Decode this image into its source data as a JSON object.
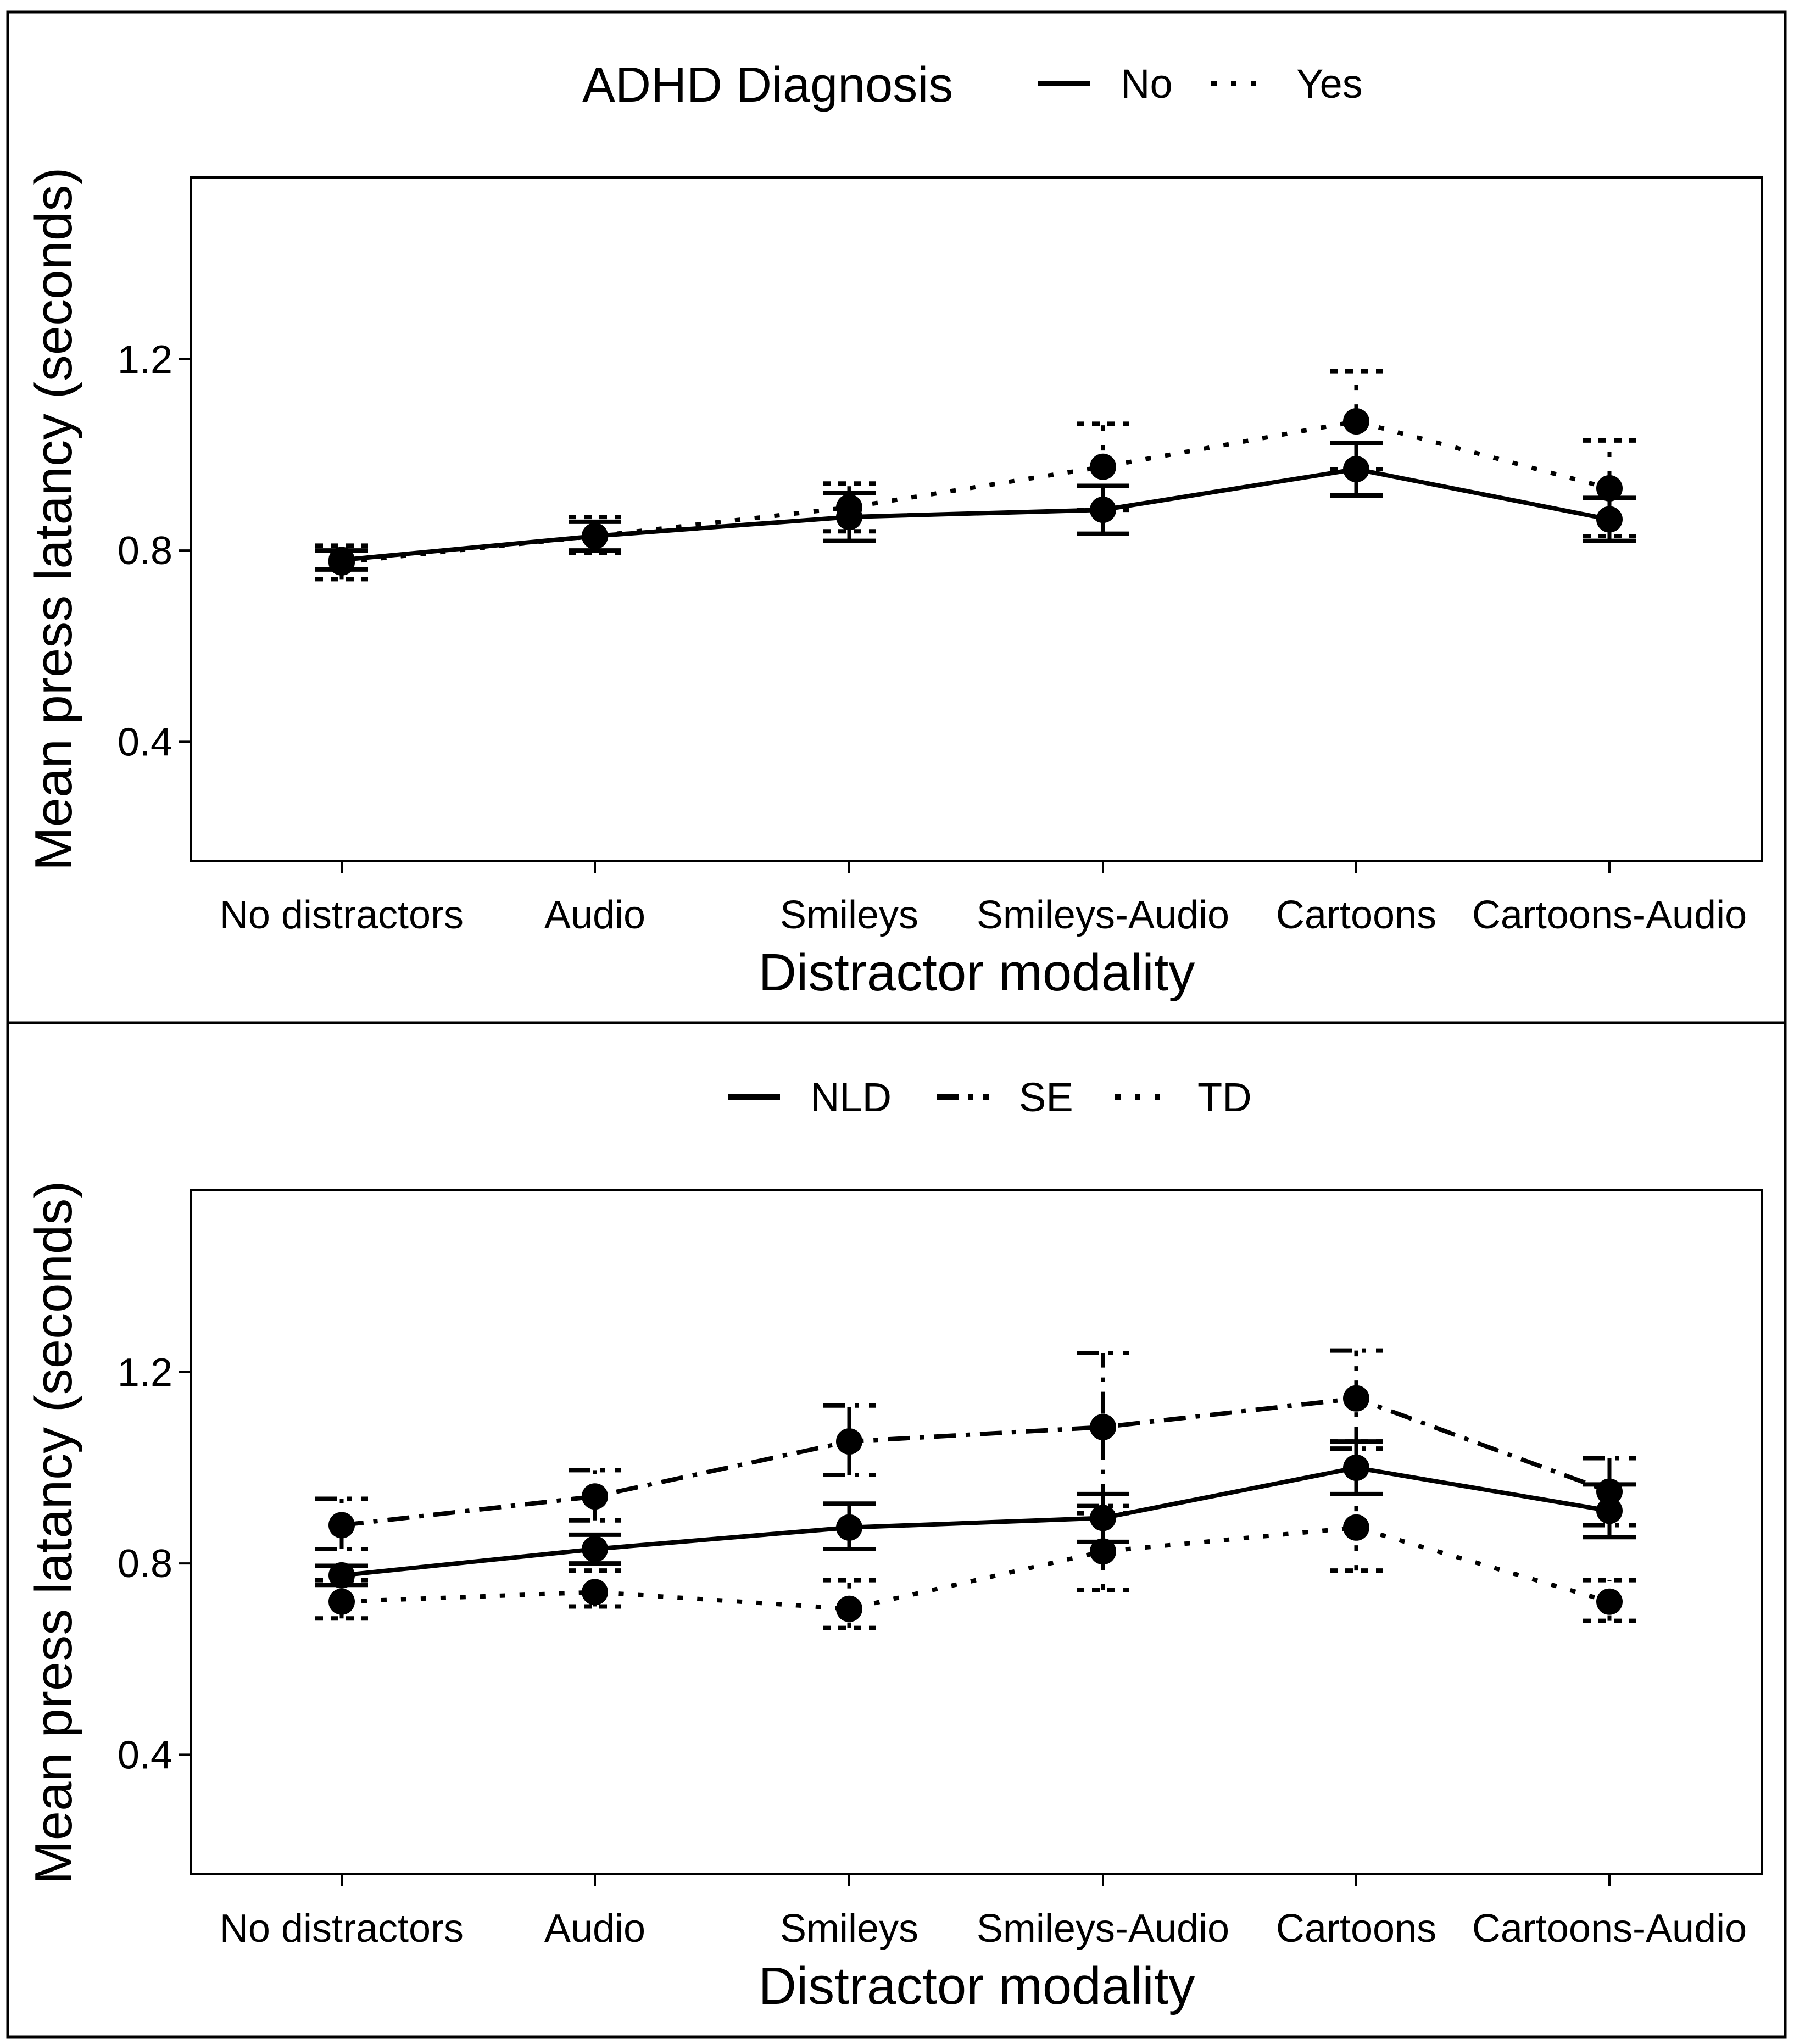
{
  "chart_data": [
    {
      "type": "line",
      "title": "",
      "xlabel": "Distractor modality",
      "ylabel": "Mean press latancy (seconds)",
      "ylim": [
        0.15,
        1.58
      ],
      "yticks": [
        0.4,
        0.8,
        1.2
      ],
      "ytick_labels": [
        "0.4",
        "0.8",
        "1.2"
      ],
      "categories": [
        "No distractors",
        "Audio",
        "Smileys",
        "Smileys-Audio",
        "Cartoons",
        "Cartoons-Audio"
      ],
      "legend": {
        "title": "ADHD Diagnosis",
        "position": "top"
      },
      "series": [
        {
          "name": "No",
          "line_style": "solid",
          "values": [
            0.78,
            0.83,
            0.87,
            0.885,
            0.97,
            0.865
          ],
          "ci_low": [
            0.76,
            0.8,
            0.82,
            0.835,
            0.915,
            0.82
          ],
          "ci_high": [
            0.8,
            0.86,
            0.92,
            0.935,
            1.025,
            0.91
          ]
        },
        {
          "name": "Yes",
          "line_style": "dotted",
          "values": [
            0.775,
            0.83,
            0.89,
            0.975,
            1.07,
            0.93
          ],
          "ci_low": [
            0.74,
            0.795,
            0.84,
            0.885,
            0.97,
            0.83
          ],
          "ci_high": [
            0.81,
            0.87,
            0.94,
            1.065,
            1.175,
            1.03
          ]
        }
      ]
    },
    {
      "type": "line",
      "title": "",
      "xlabel": "Distractor modality",
      "ylabel": "Mean press latancy (seconds)",
      "ylim": [
        0.15,
        1.58
      ],
      "yticks": [
        0.4,
        0.8,
        1.2
      ],
      "ytick_labels": [
        "0.4",
        "0.8",
        "1.2"
      ],
      "categories": [
        "No distractors",
        "Audio",
        "Smileys",
        "Smileys-Audio",
        "Cartoons",
        "Cartoons-Audio"
      ],
      "legend": {
        "title": "",
        "position": "top"
      },
      "series": [
        {
          "name": "NLD",
          "line_style": "solid",
          "values": [
            0.775,
            0.83,
            0.875,
            0.895,
            1.0,
            0.91
          ],
          "ci_low": [
            0.755,
            0.8,
            0.83,
            0.845,
            0.945,
            0.855
          ],
          "ci_high": [
            0.795,
            0.86,
            0.925,
            0.945,
            1.055,
            0.965
          ]
        },
        {
          "name": "SE",
          "line_style": "dashdot",
          "values": [
            0.88,
            0.94,
            1.055,
            1.085,
            1.145,
            0.95
          ],
          "ci_low": [
            0.83,
            0.89,
            0.985,
            0.92,
            1.04,
            0.88
          ],
          "ci_high": [
            0.935,
            0.995,
            1.13,
            1.24,
            1.245,
            1.02
          ]
        },
        {
          "name": "TD",
          "line_style": "dotted",
          "values": [
            0.72,
            0.74,
            0.705,
            0.825,
            0.875,
            0.72
          ],
          "ci_low": [
            0.685,
            0.71,
            0.665,
            0.745,
            0.785,
            0.68
          ],
          "ci_high": [
            0.765,
            0.785,
            0.765,
            0.905,
            1.055,
            0.765
          ]
        }
      ]
    }
  ]
}
